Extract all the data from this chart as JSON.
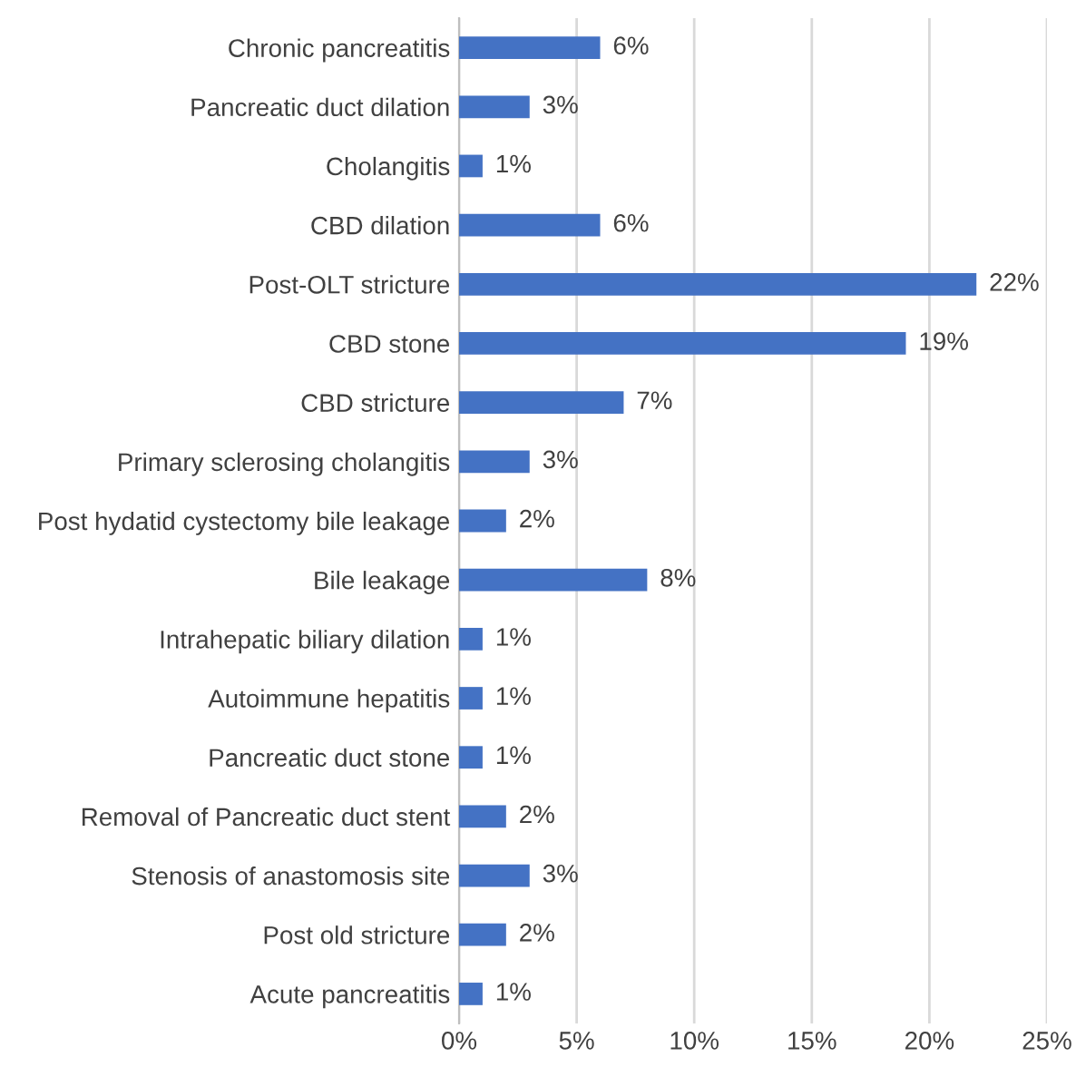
{
  "chart_data": {
    "type": "bar",
    "orientation": "horizontal",
    "categories": [
      "Chronic pancreatitis",
      "Pancreatic duct dilation",
      "Cholangitis",
      "CBD dilation",
      "Post-OLT stricture",
      "CBD stone",
      "CBD stricture",
      "Primary sclerosing cholangitis",
      "Post hydatid cystectomy bile leakage",
      "Bile leakage",
      "Intrahepatic biliary dilation",
      "Autoimmune hepatitis",
      "Pancreatic duct stone",
      "Removal of Pancreatic duct stent",
      "Stenosis of anastomosis site",
      "Post old stricture",
      "Acute pancreatitis"
    ],
    "values": [
      6,
      3,
      1,
      6,
      22,
      19,
      7,
      3,
      2,
      8,
      1,
      1,
      1,
      2,
      3,
      2,
      1
    ],
    "value_labels": [
      "6%",
      "3%",
      "1%",
      "6%",
      "22%",
      "19%",
      "7%",
      "3%",
      "2%",
      "8%",
      "1%",
      "1%",
      "1%",
      "2%",
      "3%",
      "2%",
      "1%"
    ],
    "color": "#4472c4",
    "xlim": [
      0,
      25
    ],
    "xticks": [
      {
        "value": 0,
        "label": "0%"
      },
      {
        "value": 5,
        "label": "5%"
      },
      {
        "value": 10,
        "label": "10%"
      },
      {
        "value": 15,
        "label": "15%"
      },
      {
        "value": 20,
        "label": "20%"
      },
      {
        "value": 25,
        "label": "25%"
      }
    ],
    "grid": "x",
    "legend": false
  }
}
